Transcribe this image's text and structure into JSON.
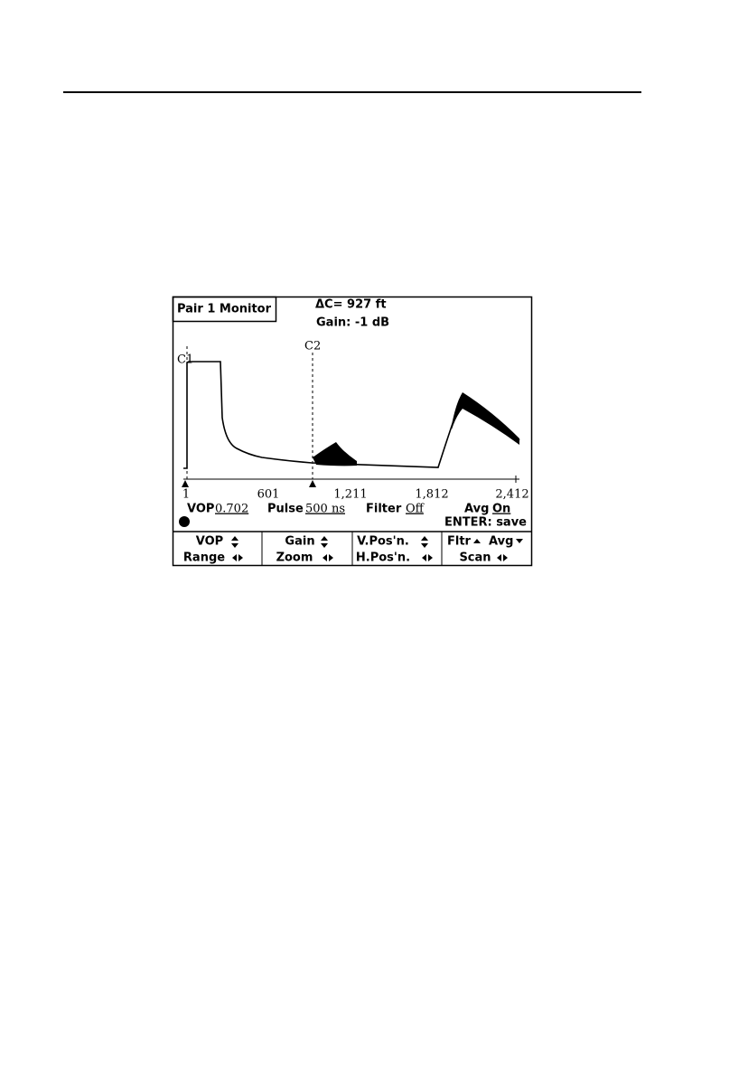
{
  "screen": {
    "title": "Pair 1 Monitor",
    "delta_c": "ΔC= 927 ft",
    "gain": "Gain: -1 dB",
    "cursors": [
      "C1",
      "C2"
    ],
    "axis_labels": [
      "1",
      "601",
      "1,211",
      "1,812",
      "2,412"
    ],
    "settings": [
      {
        "label": "VOP",
        "value": "0.702"
      },
      {
        "label": "Pulse",
        "value": "500 ns"
      },
      {
        "label": "Filter",
        "value": "Off"
      },
      {
        "label": "Avg",
        "value": "On"
      }
    ],
    "enter_hint": "ENTER: save",
    "softkeys": [
      {
        "top": "VOP",
        "bottom": "Range"
      },
      {
        "top": "Gain",
        "bottom": "Zoom"
      },
      {
        "top": "V.Pos'n.",
        "bottom": "H.Pos'n."
      },
      {
        "top": "Fltr",
        "top2": "Avg",
        "bottom": "Scan"
      }
    ]
  }
}
